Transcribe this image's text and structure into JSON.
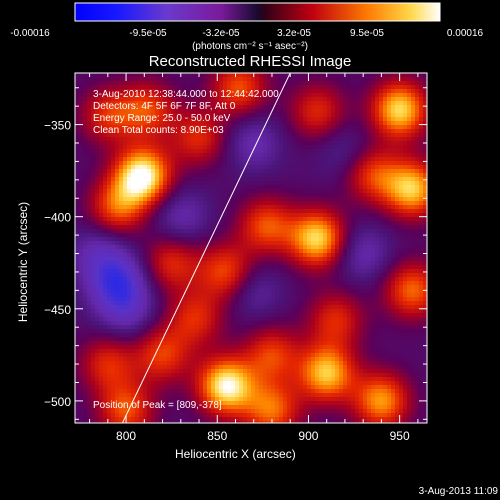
{
  "chart_data": {
    "type": "heatmap",
    "title": "Reconstructed RHESSI Image",
    "xlabel": "Heliocentric X (arcsec)",
    "ylabel": "Heliocentric Y (arcsec)",
    "xlim": [
      772,
      965
    ],
    "ylim": [
      -512,
      -322
    ],
    "x_ticks": [
      800,
      850,
      900,
      950
    ],
    "y_ticks": [
      -350,
      -400,
      -450,
      -500
    ],
    "colorbar": {
      "ticks": [
        "-0.00016",
        "-9.5e-05",
        "-3.2e-05",
        "3.2e-05",
        "9.5e-05",
        "0.00016"
      ],
      "min": -0.00016,
      "max": 0.00016,
      "units": "(photons cm⁻² s⁻¹ asec⁻²)"
    },
    "annotations": [
      "3-Aug-2010 12:38:44.000 to 12:44:42.000",
      "Detectors: 4F 5F 6F 7F 8F, Att 0",
      "Energy Range: 25.0 - 50.0 keV",
      "Clean    Total counts: 8.90E+03"
    ],
    "peak_label": "Position of Peak = [809,-378]",
    "peak": [
      809,
      -378
    ],
    "limb_line": [
      [
        798,
        -512
      ],
      [
        890,
        -322
      ]
    ],
    "blobs": [
      {
        "x": 809,
        "y": -378,
        "v": 1.0
      },
      {
        "x": 795,
        "y": -395,
        "v": 0.55
      },
      {
        "x": 790,
        "y": -345,
        "v": 0.45
      },
      {
        "x": 812,
        "y": -342,
        "v": 0.5
      },
      {
        "x": 840,
        "y": -357,
        "v": 0.45
      },
      {
        "x": 862,
        "y": -330,
        "v": 0.55
      },
      {
        "x": 905,
        "y": -343,
        "v": 0.45
      },
      {
        "x": 950,
        "y": -342,
        "v": 0.85
      },
      {
        "x": 957,
        "y": -385,
        "v": 0.8
      },
      {
        "x": 935,
        "y": -377,
        "v": 0.5
      },
      {
        "x": 905,
        "y": -412,
        "v": 0.85
      },
      {
        "x": 877,
        "y": -405,
        "v": 0.55
      },
      {
        "x": 825,
        "y": -425,
        "v": 0.45
      },
      {
        "x": 855,
        "y": -430,
        "v": 0.55
      },
      {
        "x": 838,
        "y": -455,
        "v": 0.45
      },
      {
        "x": 957,
        "y": -440,
        "v": 0.6
      },
      {
        "x": 915,
        "y": -456,
        "v": 0.45
      },
      {
        "x": 880,
        "y": -475,
        "v": 0.5
      },
      {
        "x": 820,
        "y": -475,
        "v": 0.5
      },
      {
        "x": 790,
        "y": -480,
        "v": 0.45
      },
      {
        "x": 855,
        "y": -492,
        "v": 0.95
      },
      {
        "x": 910,
        "y": -485,
        "v": 0.8
      },
      {
        "x": 940,
        "y": -500,
        "v": 0.7
      },
      {
        "x": 800,
        "y": -505,
        "v": 0.55
      },
      {
        "x": 880,
        "y": -505,
        "v": 0.6
      },
      {
        "x": 800,
        "y": -450,
        "v": -0.35
      },
      {
        "x": 795,
        "y": -435,
        "v": -0.55
      },
      {
        "x": 785,
        "y": -420,
        "v": -0.3
      },
      {
        "x": 830,
        "y": -400,
        "v": -0.3
      },
      {
        "x": 870,
        "y": -360,
        "v": -0.3
      },
      {
        "x": 930,
        "y": -420,
        "v": -0.3
      },
      {
        "x": 870,
        "y": -440,
        "v": -0.25
      },
      {
        "x": 920,
        "y": -365,
        "v": -0.2
      }
    ]
  },
  "footer": {
    "date": "3-Aug-2013 11:09"
  }
}
